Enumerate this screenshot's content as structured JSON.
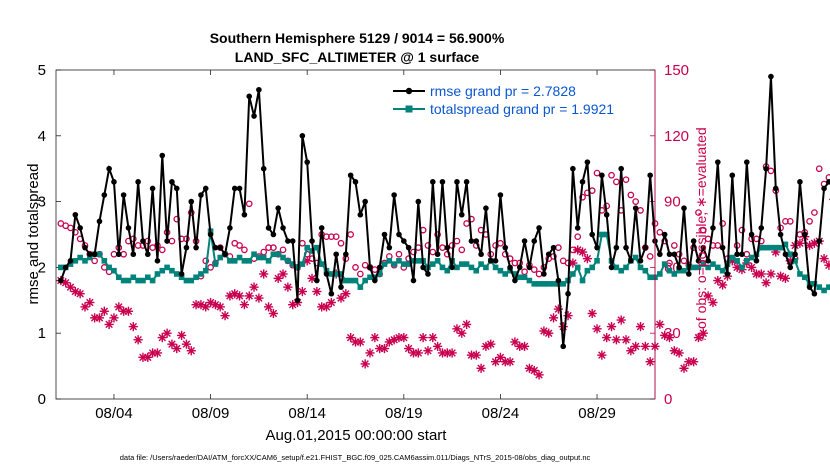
{
  "chart_data": {
    "type": "line",
    "title_line1": "Southern Hemisphere 5129 / 9014 = 56.900%",
    "title_line2": "LAND_SFC_ALTIMETER @ 1 surface",
    "ylabel_left": "rmse and totalspread",
    "ylabel_right": "# of obs: o=possible; ∗=evaluated",
    "xlabel": "Aug.01,2015 00:00:00 start",
    "ylim_left": [
      0,
      5
    ],
    "ylim_right": [
      0,
      150
    ],
    "yticks_left": [
      "0",
      "1",
      "2",
      "3",
      "4",
      "5"
    ],
    "yticks_right": [
      "0",
      "30",
      "60",
      "90",
      "120",
      "150"
    ],
    "xlim": [
      1.0,
      32.0
    ],
    "xticks": [
      {
        "value": 4,
        "label": "08/04"
      },
      {
        "value": 9,
        "label": "08/09"
      },
      {
        "value": 14,
        "label": "08/14"
      },
      {
        "value": 19,
        "label": "08/19"
      },
      {
        "value": 24,
        "label": "08/24"
      },
      {
        "value": 29,
        "label": "08/29"
      }
    ],
    "legend": [
      {
        "label": "rmse grand pr = 2.7828",
        "color": "#000000"
      },
      {
        "label": "totalspread grand pr = 1.9921",
        "color": "#00837a"
      }
    ],
    "colors": {
      "rmse": "#000000",
      "spread": "#00837a",
      "obs": "#c8004f",
      "legend_text": "#0b57d0"
    },
    "x_start": 1.25,
    "x_step": 0.25,
    "series": [
      {
        "name": "rmse",
        "values": [
          1.8,
          2.0,
          2.1,
          2.8,
          2.6,
          2.3,
          2.2,
          2.2,
          2.7,
          3.1,
          3.5,
          3.3,
          2.2,
          3.1,
          2.6,
          2.2,
          3.3,
          2.4,
          2.2,
          3.2,
          2.1,
          3.7,
          2.4,
          3.3,
          3.2,
          1.9,
          2.3,
          3.0,
          2.3,
          3.1,
          3.2,
          2.5,
          2.3,
          2.3,
          2.2,
          2.6,
          3.2,
          3.2,
          2.8,
          4.6,
          4.3,
          4.7,
          3.5,
          2.6,
          2.5,
          2.9,
          2.6,
          2.4,
          2.4,
          1.5,
          4.0,
          3.6,
          2.4,
          1.8,
          2.6,
          1.9,
          1.6,
          2.2,
          1.7,
          2.2,
          3.4,
          3.3,
          2.8,
          3.0,
          2.0,
          1.8,
          2.0,
          2.5,
          2.3,
          3.1,
          2.5,
          2.4,
          2.3,
          1.8,
          3.0,
          2.0,
          1.9,
          3.3,
          2.2,
          3.3,
          2.3,
          2.0,
          3.3,
          2.8,
          3.3,
          2.4,
          2.4,
          2.2,
          2.9,
          2.1,
          2.1,
          3.1,
          2.3,
          2.0,
          1.8,
          2.0,
          2.4,
          2.0,
          2.4,
          2.6,
          1.9,
          2.2,
          2.3,
          1.8,
          0.8,
          1.6,
          3.5,
          2.6,
          3.3,
          3.6,
          2.5,
          2.3,
          3.4,
          2.8,
          2.0,
          2.3,
          3.5,
          2.3,
          2.1,
          2.9,
          2.1,
          2.3,
          3.4,
          2.4,
          2.2,
          2.5,
          2.2,
          2.2,
          2.0,
          2.9,
          1.9,
          2.4,
          2.1,
          2.3,
          2.1,
          2.6,
          3.6,
          2.3,
          1.9,
          3.4,
          2.2,
          2.2,
          3.6,
          2.5,
          2.1,
          2.6,
          3.5,
          4.9,
          3.2,
          2.5,
          2.2,
          2.0,
          2.2,
          3.3,
          2.5,
          1.7,
          1.6,
          2.4,
          3.2,
          3.3
        ]
      },
      {
        "name": "totalspread",
        "values": [
          2.0,
          2.0,
          2.05,
          2.1,
          2.15,
          2.1,
          2.15,
          2.2,
          2.2,
          2.1,
          2.0,
          1.95,
          1.85,
          1.8,
          1.8,
          1.85,
          1.8,
          1.8,
          1.85,
          1.8,
          1.9,
          1.95,
          2.0,
          1.95,
          1.9,
          1.85,
          1.8,
          1.8,
          1.85,
          1.9,
          1.95,
          2.55,
          2.05,
          2.15,
          2.2,
          2.1,
          2.1,
          2.15,
          2.1,
          2.1,
          2.2,
          2.15,
          2.15,
          2.1,
          2.2,
          2.2,
          2.15,
          2.1,
          2.05,
          2.0,
          2.05,
          2.3,
          2.25,
          2.3,
          2.05,
          1.95,
          1.9,
          1.9,
          1.9,
          1.8,
          1.8,
          1.8,
          1.7,
          1.8,
          1.85,
          1.85,
          1.9,
          2.05,
          2.1,
          2.05,
          2.1,
          2.05,
          2.05,
          2.1,
          2.1,
          2.1,
          2.0,
          2.05,
          2.1,
          2.0,
          1.95,
          2.1,
          2.0,
          2.05,
          2.05,
          2.0,
          1.95,
          2.05,
          2.0,
          2.1,
          2.0,
          1.95,
          1.9,
          1.95,
          1.9,
          1.85,
          1.85,
          1.8,
          1.75,
          1.75,
          1.75,
          1.75,
          1.75,
          1.75,
          1.75,
          1.8,
          1.9,
          2.0,
          1.8,
          1.95,
          2.0,
          2.1,
          2.5,
          2.5,
          2.1,
          2.0,
          1.95,
          2.0,
          2.1,
          2.15,
          2.0,
          1.95,
          1.85,
          1.85,
          1.9,
          2.05,
          1.95,
          1.9,
          1.95,
          1.95,
          2.0,
          2.0,
          2.0,
          2.05,
          2.0,
          2.05,
          2.0,
          1.95,
          2.05,
          2.15,
          2.1,
          2.0,
          2.1,
          2.15,
          2.2,
          2.3,
          2.3,
          2.3,
          2.3,
          2.3,
          2.35,
          2.2,
          2.1,
          1.9,
          1.85,
          1.75,
          1.75,
          1.7,
          1.65,
          1.7
        ]
      },
      {
        "name": "obs_possible",
        "values": [
          80,
          79,
          78,
          76,
          73,
          70,
          66,
          63,
          66,
          60,
          58,
          66,
          69,
          66,
          72,
          73,
          70,
          70,
          72,
          69,
          70,
          68,
          76,
          72,
          82,
          73,
          73,
          85,
          72,
          56,
          63,
          60,
          62,
          69,
          66,
          65,
          71,
          70,
          68,
          89,
          64,
          65,
          67,
          69,
          69,
          66,
          68,
          63,
          61,
          60,
          71,
          66,
          64,
          62,
          75,
          74,
          74,
          74,
          71,
          64,
          75,
          60,
          57,
          61,
          60,
          59,
          57,
          62,
          65,
          61,
          66,
          60,
          64,
          67,
          69,
          77,
          70,
          67,
          75,
          69,
          66,
          70,
          72,
          68,
          80,
          82,
          70,
          77,
          75,
          66,
          70,
          71,
          66,
          64,
          62,
          62,
          58,
          61,
          59,
          57,
          60,
          64,
          65,
          69,
          63,
          62,
          68,
          74,
          92,
          94,
          95,
          103,
          86,
          88,
          102,
          99,
          86,
          100,
          93,
          90,
          86,
          69,
          65,
          80,
          76,
          72,
          62,
          70,
          66,
          63,
          61,
          69,
          85,
          77,
          73,
          70,
          70,
          80,
          64,
          64,
          70,
          77,
          66,
          73,
          73,
          72,
          106,
          104,
          95,
          78,
          81,
          81,
          64,
          75,
          76,
          81,
          85,
          105,
          98,
          101,
          107,
          104
        ]
      },
      {
        "name": "obs_evaluated",
        "values": [
          54,
          53,
          51,
          49,
          48,
          42,
          44,
          37,
          37,
          40,
          34,
          37,
          42,
          40,
          40,
          33,
          27,
          19,
          19,
          21,
          21,
          28,
          30,
          25,
          23,
          29,
          25,
          22,
          43,
          43,
          42,
          44,
          43,
          42,
          38,
          47,
          48,
          47,
          43,
          47,
          51,
          46,
          57,
          42,
          39,
          55,
          57,
          51,
          43,
          44,
          49,
          63,
          55,
          49,
          42,
          42,
          44,
          57,
          46,
          48,
          28,
          26,
          26,
          16,
          21,
          28,
          23,
          23,
          26,
          27,
          28,
          28,
          23,
          21,
          21,
          28,
          22,
          28,
          24,
          21,
          21,
          21,
          32,
          30,
          34,
          20,
          20,
          14,
          24,
          25,
          17,
          19,
          17,
          17,
          26,
          24,
          24,
          14,
          13,
          11,
          31,
          30,
          37,
          41,
          33,
          38,
          62,
          68,
          67,
          64,
          39,
          32,
          20,
          28,
          33,
          27,
          36,
          27,
          22,
          24,
          33,
          24,
          17,
          24,
          34,
          29,
          28,
          22,
          21,
          14,
          17,
          17,
          28,
          30,
          47,
          44,
          54,
          52,
          56,
          63,
          60,
          59,
          62,
          60,
          57,
          57,
          53,
          57,
          67,
          56,
          55,
          63,
          70,
          71,
          74,
          70,
          71,
          72,
          64,
          61,
          91,
          0
        ]
      }
    ]
  },
  "footer": "data file: /Users/raeder/DAI/ATM_forcXX/CAM6_setup/f.e21.FHIST_BGC.f09_025.CAM6assim.011/Diags_NTrS_2015-08/obs_diag_output.nc"
}
